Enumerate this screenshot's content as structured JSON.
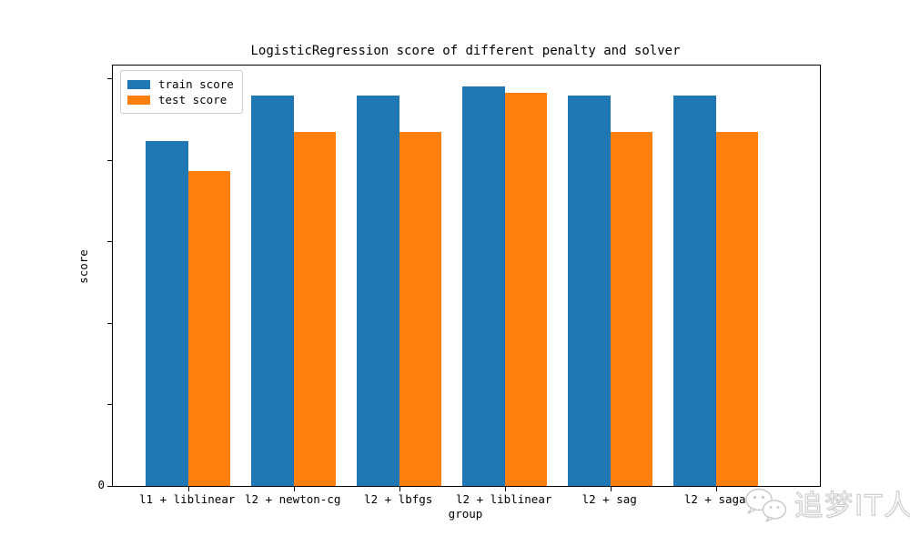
{
  "chart_data": {
    "type": "bar",
    "title": "LogisticRegression score of different penalty and solver",
    "xlabel": "group",
    "ylabel": "score",
    "categories": [
      "l1 + liblinear",
      "l2 + newton-cg",
      "l2 + lbfgs",
      "l2 + liblinear",
      "l2 + sag",
      "l2 + saga"
    ],
    "series": [
      {
        "name": "train score",
        "color": "#1f77b4",
        "values": [
          0.846,
          0.958,
          0.958,
          0.98,
          0.958,
          0.958
        ]
      },
      {
        "name": "test score",
        "color": "#ff7f0e",
        "values": [
          0.772,
          0.868,
          0.868,
          0.964,
          0.868,
          0.868
        ]
      }
    ],
    "ylim": [
      0,
      1.031
    ],
    "ytick_values": [
      0,
      0.2,
      0.4,
      0.6,
      0.8,
      1.0
    ],
    "ytick_labels_shown": [
      "0"
    ],
    "legend_position": "upper left",
    "grid": false
  },
  "watermark": {
    "text": "追梦IT人",
    "icon": "wechat-icon"
  }
}
